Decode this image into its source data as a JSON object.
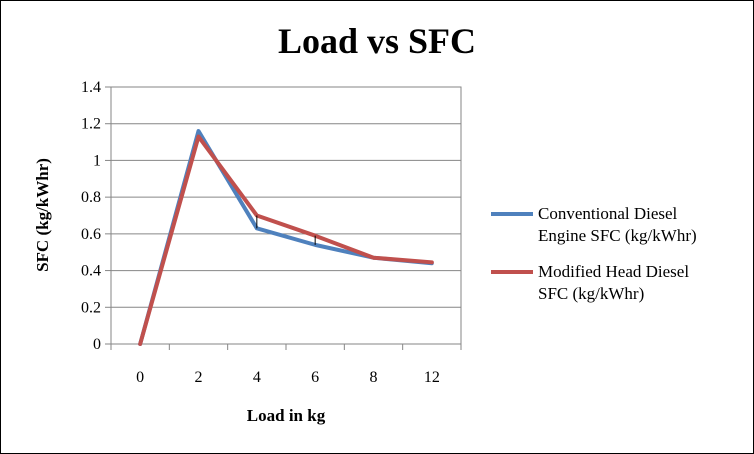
{
  "chart_data": {
    "type": "line",
    "title": "Load vs SFC",
    "xlabel": "Load in kg",
    "ylabel": "SFC (kg/kWhr)",
    "categories": [
      "0",
      "2",
      "4",
      "6",
      "8",
      "12"
    ],
    "yticks": [
      "0",
      "0.2",
      "0.4",
      "0.6",
      "0.8",
      "1",
      "1.2",
      "1.4"
    ],
    "ylim": [
      0,
      1.4
    ],
    "grid": true,
    "legend_position": "right",
    "series": [
      {
        "name_lines": [
          "Conventional Diesel",
          "Engine SFC (kg/kWhr)"
        ],
        "color": "#4F81BD",
        "values": [
          0,
          1.16,
          0.63,
          0.54,
          0.47,
          0.44
        ]
      },
      {
        "name_lines": [
          "Modified Head Diesel",
          "SFC (kg/kWhr)"
        ],
        "color": "#C0504D",
        "values": [
          0,
          1.13,
          0.7,
          0.59,
          0.47,
          0.445
        ]
      }
    ]
  }
}
